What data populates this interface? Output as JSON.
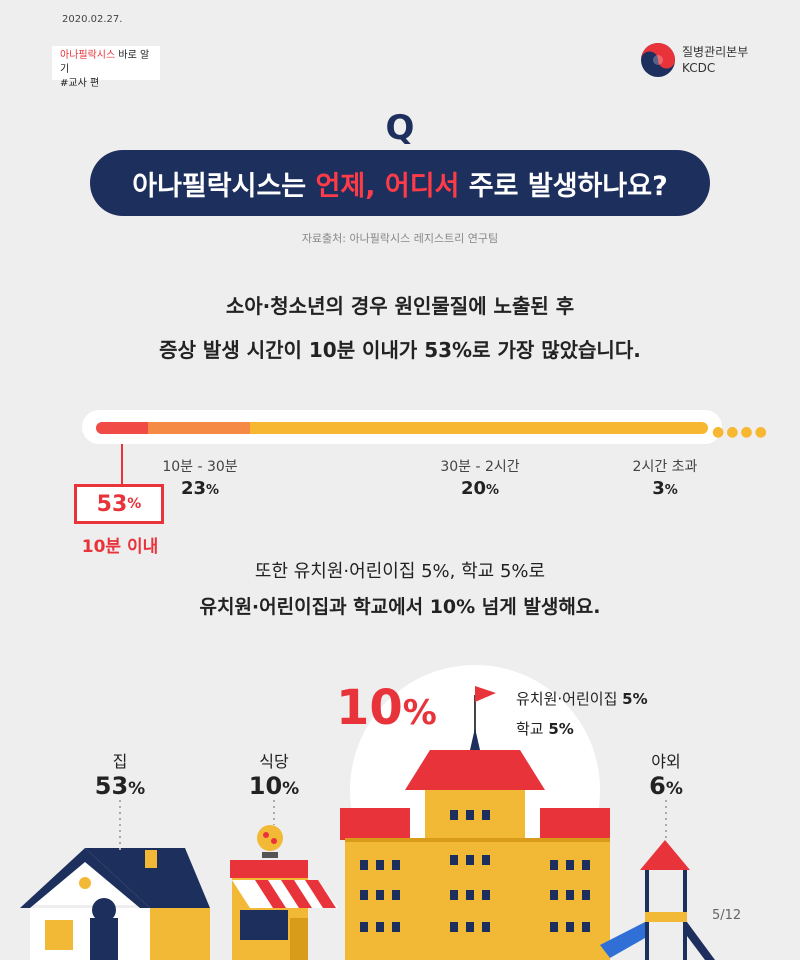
{
  "header": {
    "date": "2020.02.27.",
    "tag_red": "아나필락시스",
    "tag_rest": " 바로 알기",
    "tag_line2": "#교사 편",
    "org_name": "질병관리본부",
    "org_abbr": "KCDC"
  },
  "question": {
    "letter": "Q",
    "text_before": "아나필락시스는 ",
    "highlight": "언제, 어디서",
    "text_after": " 주로 발생하나요?",
    "source": "자료출처: 아나필락시스 레지스트리 연구팀"
  },
  "summary": {
    "line1": "소아·청소년의 경우 원인물질에 노출된 후",
    "line2": "증상 발생 시간이 10분 이내가 53%로 가장 많았습니다."
  },
  "time_bar": {
    "segments": [
      {
        "label": "10분 이내",
        "value": 53,
        "color": "#f04b45"
      },
      {
        "label": "10분 - 30분",
        "value": 23,
        "color": "#f58a44"
      },
      {
        "label": "30분 - 2시간",
        "value": 20,
        "color": "#f7b731"
      },
      {
        "label": "2시간 초과",
        "value": 3,
        "color": "#f7b731"
      }
    ],
    "labels": {
      "l1": "10분 - 30분",
      "v1": "23",
      "u1": "%",
      "l2": "30분 - 2시간",
      "v2": "20",
      "u2": "%",
      "l3": "2시간 초과",
      "v3": "3",
      "u3": "%",
      "main_value": "53",
      "main_unit": "%",
      "main_label": "10분 이내"
    }
  },
  "also": {
    "line1": "또한 유치원·어린이집 5%, 학교 5%로",
    "line2": "유치원·어린이집과 학교에서 10% 넘게 발생해요."
  },
  "locations": {
    "school_big": "10",
    "school_big_unit": "%",
    "school_line1_label": "유치원·어린이집 ",
    "school_line1_value": "5%",
    "school_line2_label": "학교 ",
    "school_line2_value": "5%",
    "home_label": "집",
    "home_value": "53",
    "home_unit": "%",
    "restaurant_label": "식당",
    "restaurant_value": "10",
    "restaurant_unit": "%",
    "outdoor_label": "야외",
    "outdoor_value": "6",
    "outdoor_unit": "%"
  },
  "page_number": "5/12"
}
